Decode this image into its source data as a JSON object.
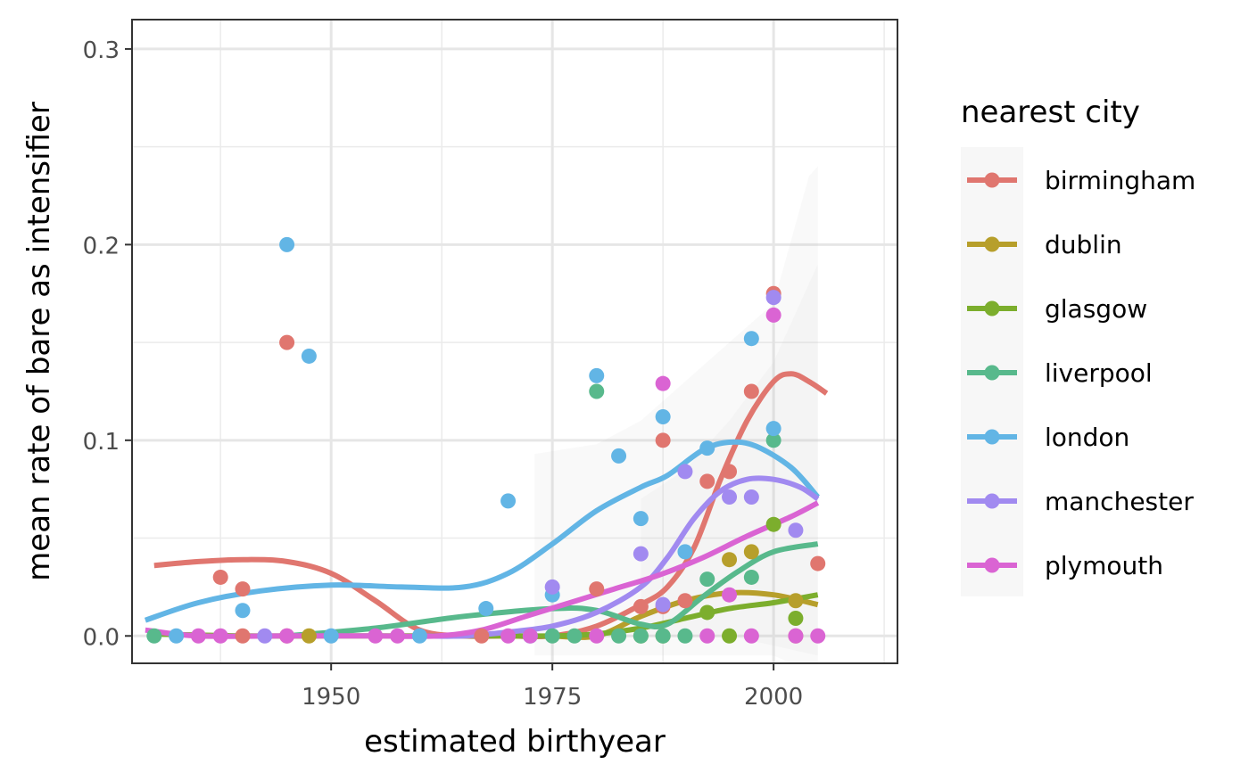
{
  "chart_data": {
    "type": "scatter",
    "xlabel": "estimated birthyear",
    "ylabel": "mean rate of bare as intensifier",
    "xlim": [
      1927.5,
      2014
    ],
    "ylim": [
      -0.014,
      0.315
    ],
    "x_ticks": [
      1950,
      1975,
      2000
    ],
    "x_tick_labels": [
      "1950",
      "1975",
      "2000"
    ],
    "y_ticks": [
      0.0,
      0.1,
      0.2,
      0.3
    ],
    "y_tick_labels": [
      "0.0",
      "0.1",
      "0.2",
      "0.3"
    ],
    "grid": true,
    "legend_title": "nearest city",
    "legend_position": "right",
    "series": [
      {
        "name": "birmingham",
        "color": "#E0766F",
        "points": [
          [
            1937.5,
            0.03
          ],
          [
            1940,
            0.024
          ],
          [
            1940,
            0
          ],
          [
            1945,
            0.15
          ],
          [
            1945,
            0
          ],
          [
            1967,
            0
          ],
          [
            1980,
            0.024
          ],
          [
            1985,
            0.015
          ],
          [
            1987.5,
            0.1
          ],
          [
            1987.5,
            0.015
          ],
          [
            1990,
            0.018
          ],
          [
            1992.5,
            0.079
          ],
          [
            1995,
            0.084
          ],
          [
            1997.5,
            0.125
          ],
          [
            2000,
            0.175
          ],
          [
            2002.5,
            0
          ],
          [
            2005,
            0.037
          ]
        ],
        "smooth": [
          [
            1930,
            0.036
          ],
          [
            1935,
            0.038
          ],
          [
            1940,
            0.039
          ],
          [
            1945,
            0.038
          ],
          [
            1950,
            0.032
          ],
          [
            1955,
            0.018
          ],
          [
            1960,
            0.003
          ],
          [
            1965,
            0
          ],
          [
            1970,
            0
          ],
          [
            1975,
            0
          ],
          [
            1980,
            0.005
          ],
          [
            1985,
            0.016
          ],
          [
            1988,
            0.025
          ],
          [
            1991,
            0.045
          ],
          [
            1994,
            0.08
          ],
          [
            1997,
            0.11
          ],
          [
            2000,
            0.13
          ],
          [
            2002,
            0.134
          ],
          [
            2004,
            0.13
          ],
          [
            2006,
            0.124
          ]
        ]
      },
      {
        "name": "dublin",
        "color": "#B79F2B",
        "points": [
          [
            1947.5,
            0
          ],
          [
            1995,
            0.039
          ],
          [
            1997.5,
            0.043
          ],
          [
            2002.5,
            0.018
          ]
        ],
        "smooth": [
          [
            1975,
            0
          ],
          [
            1980,
            0
          ],
          [
            1985,
            0.01
          ],
          [
            1990,
            0.018
          ],
          [
            1995,
            0.022
          ],
          [
            2000,
            0.021
          ],
          [
            2005,
            0.016
          ]
        ]
      },
      {
        "name": "glasgow",
        "color": "#7CAE2D",
        "points": [
          [
            1985,
            0
          ],
          [
            1987.5,
            0
          ],
          [
            1995,
            0
          ],
          [
            1992.5,
            0.012
          ],
          [
            2002.5,
            0.009
          ],
          [
            2000,
            0.057
          ]
        ],
        "smooth": [
          [
            1930,
            0.001
          ],
          [
            1940,
            0
          ],
          [
            1950,
            0
          ],
          [
            1960,
            0
          ],
          [
            1970,
            0
          ],
          [
            1975,
            0
          ],
          [
            1980,
            0.001
          ],
          [
            1985,
            0.004
          ],
          [
            1990,
            0.009
          ],
          [
            1995,
            0.014
          ],
          [
            2000,
            0.017
          ],
          [
            2005,
            0.021
          ]
        ]
      },
      {
        "name": "liverpool",
        "color": "#58B98C",
        "points": [
          [
            1930,
            0
          ],
          [
            1975,
            0
          ],
          [
            1977.5,
            0
          ],
          [
            1980,
            0.125
          ],
          [
            1982.5,
            0
          ],
          [
            1985,
            0
          ],
          [
            1987.5,
            0
          ],
          [
            1990,
            0
          ],
          [
            1992.5,
            0.029
          ],
          [
            1997.5,
            0.03
          ],
          [
            2000,
            0.1
          ]
        ],
        "smooth": [
          [
            1945,
            0
          ],
          [
            1955,
            0.004
          ],
          [
            1965,
            0.01
          ],
          [
            1975,
            0.014
          ],
          [
            1980,
            0.013
          ],
          [
            1985,
            0.006
          ],
          [
            1988,
            0.006
          ],
          [
            1992,
            0.02
          ],
          [
            1996,
            0.033
          ],
          [
            2000,
            0.043
          ],
          [
            2005,
            0.047
          ]
        ]
      },
      {
        "name": "london",
        "color": "#62B5E5",
        "points": [
          [
            1932.5,
            0
          ],
          [
            1940,
            0.013
          ],
          [
            1945,
            0.2
          ],
          [
            1947.5,
            0.143
          ],
          [
            1950,
            0
          ],
          [
            1960,
            0
          ],
          [
            1967.5,
            0.014
          ],
          [
            1970,
            0.069
          ],
          [
            1972.5,
            0
          ],
          [
            1975,
            0.021
          ],
          [
            1980,
            0.133
          ],
          [
            1982.5,
            0.092
          ],
          [
            1985,
            0.06
          ],
          [
            1987.5,
            0.112
          ],
          [
            1990,
            0.043
          ],
          [
            1992.5,
            0.096
          ],
          [
            1997.5,
            0.152
          ],
          [
            2000,
            0.106
          ]
        ],
        "smooth": [
          [
            1929,
            0.008
          ],
          [
            1935,
            0.017
          ],
          [
            1942,
            0.023
          ],
          [
            1950,
            0.026
          ],
          [
            1958,
            0.025
          ],
          [
            1965,
            0.025
          ],
          [
            1970,
            0.032
          ],
          [
            1975,
            0.047
          ],
          [
            1980,
            0.064
          ],
          [
            1985,
            0.076
          ],
          [
            1988,
            0.082
          ],
          [
            1992,
            0.095
          ],
          [
            1995,
            0.099
          ],
          [
            1998,
            0.097
          ],
          [
            2002,
            0.086
          ],
          [
            2005,
            0.071
          ]
        ]
      },
      {
        "name": "manchester",
        "color": "#A18AF0",
        "points": [
          [
            1942.5,
            0
          ],
          [
            1975,
            0.025
          ],
          [
            1985,
            0.042
          ],
          [
            1987.5,
            0.016
          ],
          [
            1990,
            0.084
          ],
          [
            1995,
            0.071
          ],
          [
            1997.5,
            0.071
          ],
          [
            2000,
            0.173
          ],
          [
            2002.5,
            0.054
          ]
        ],
        "smooth": [
          [
            1960,
            0
          ],
          [
            1965,
            0
          ],
          [
            1970,
            0.002
          ],
          [
            1975,
            0.005
          ],
          [
            1980,
            0.012
          ],
          [
            1985,
            0.025
          ],
          [
            1988,
            0.04
          ],
          [
            1991,
            0.06
          ],
          [
            1994,
            0.074
          ],
          [
            1997,
            0.08
          ],
          [
            2000,
            0.08
          ],
          [
            2003,
            0.076
          ],
          [
            2005,
            0.07
          ]
        ]
      },
      {
        "name": "plymouth",
        "color": "#DA64D3",
        "points": [
          [
            1935,
            0
          ],
          [
            1937.5,
            0
          ],
          [
            1945,
            0
          ],
          [
            1955,
            0
          ],
          [
            1957.5,
            0
          ],
          [
            1970,
            0
          ],
          [
            1972.5,
            0
          ],
          [
            1980,
            0
          ],
          [
            1987.5,
            0.129
          ],
          [
            1992.5,
            0
          ],
          [
            1995,
            0.021
          ],
          [
            1997.5,
            0
          ],
          [
            2000,
            0.164
          ],
          [
            2002.5,
            0
          ],
          [
            2005,
            0
          ]
        ],
        "smooth": [
          [
            1929,
            0.003
          ],
          [
            1935,
            0
          ],
          [
            1945,
            0
          ],
          [
            1955,
            0
          ],
          [
            1962,
            0
          ],
          [
            1967,
            0.003
          ],
          [
            1972,
            0.01
          ],
          [
            1977,
            0.017
          ],
          [
            1982,
            0.024
          ],
          [
            1987,
            0.031
          ],
          [
            1992,
            0.04
          ],
          [
            1997,
            0.051
          ],
          [
            2002,
            0.061
          ],
          [
            2005,
            0.068
          ]
        ]
      }
    ]
  }
}
